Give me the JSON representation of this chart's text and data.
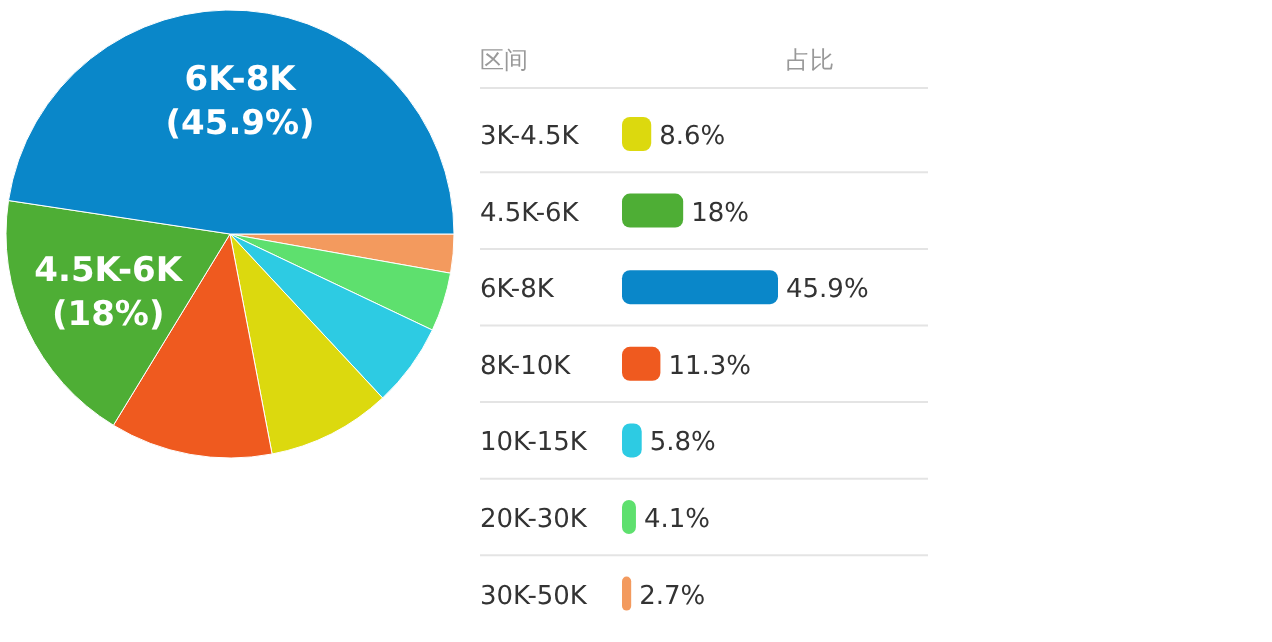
{
  "chart_data": [
    {
      "type": "pie",
      "categories": [
        null,
        null,
        null,
        null,
        null,
        null,
        null
      ],
      "values": [
        2.7,
        4.1,
        5.8,
        8.6,
        11.3,
        18,
        45.9
      ],
      "colors": [
        "#f39a5e",
        "#5ee06e",
        "#2dcbe3",
        "#dcd90e",
        "#ef5a1f",
        "#4eae35",
        "#0a87c9"
      ],
      "value_labels": [
        null,
        null,
        null,
        null,
        null,
        "4.5K-6K\n(18%)",
        "6K-8K\n(45.9%)"
      ]
    },
    {
      "type": "bar",
      "orientation": "horizontal",
      "ylabel": "区间",
      "xlabel": "占比",
      "categories": [
        "3K-4.5K",
        "4.5K-6K",
        "6K-8K",
        "8K-10K",
        "10K-15K",
        "20K-30K",
        "30K-50K"
      ],
      "values": [
        8.6,
        18,
        45.9,
        11.3,
        5.8,
        4.1,
        2.7
      ],
      "colors": [
        "#dcd90e",
        "#4eae35",
        "#0a87c9",
        "#ef5a1f",
        "#2dcbe3",
        "#5ee06e",
        "#f39a5e"
      ],
      "value_labels": [
        "8.6%",
        "18%",
        "45.9%",
        "11.3%",
        "5.8%",
        "4.1%",
        "2.7%"
      ]
    }
  ]
}
